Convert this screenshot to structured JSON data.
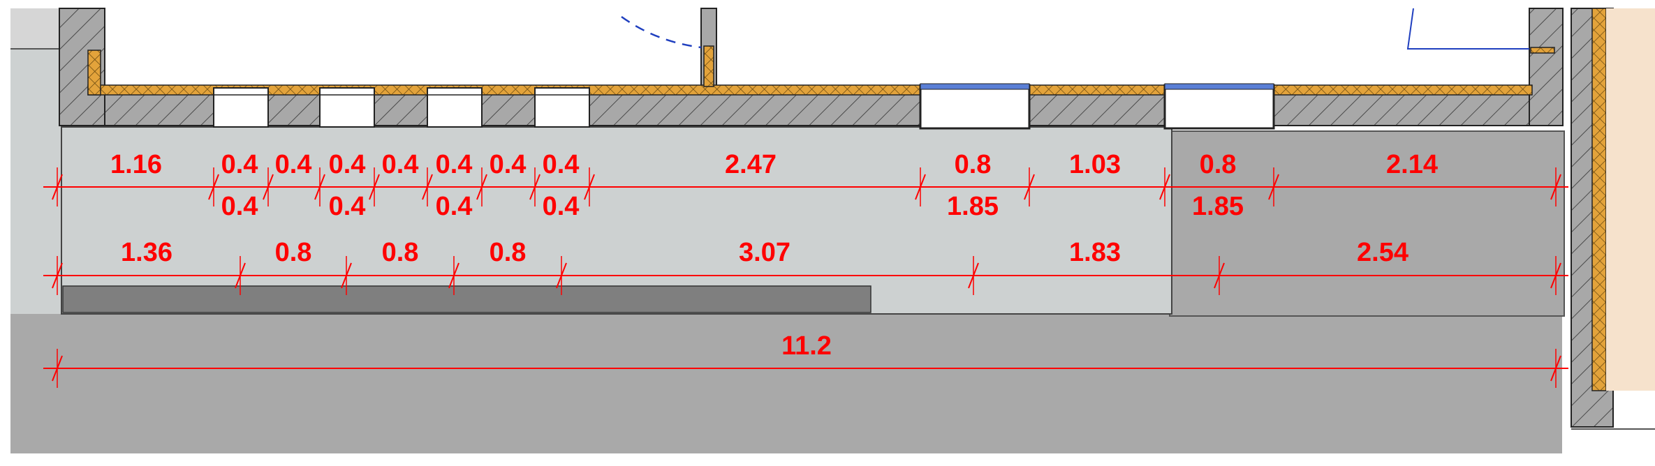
{
  "colors": {
    "background": "#ffffff",
    "wall_hatch_fill": "#a8a8a8",
    "insulation": "#e3a33b",
    "paving_light": "#cdd1d1",
    "paving_dark": "#a9a9a9",
    "strip_dark": "#7f7f7f",
    "dimension_red": "#ff0000",
    "glazing_blue": "#5a7fd6",
    "door_swing_blue": "#1f3fbf",
    "outline": "#000000"
  },
  "dimensions": {
    "row1_top": [
      "1.16",
      "0.4",
      "0.4",
      "0.4",
      "0.4",
      "0.4",
      "0.4",
      "0.4",
      "2.47",
      "0.8",
      "1.03",
      "0.8",
      "2.14"
    ],
    "row1_bottom": [
      "0.4",
      "0.4",
      "0.4",
      "0.4",
      "1.85",
      "1.85"
    ],
    "row2": [
      "1.36",
      "0.8",
      "0.8",
      "0.8",
      "3.07",
      "1.83",
      "2.54"
    ],
    "row3": [
      "11.2"
    ]
  }
}
